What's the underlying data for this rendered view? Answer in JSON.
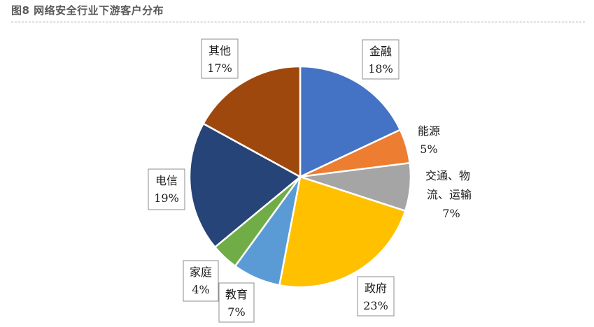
{
  "figure": {
    "title": "图8 网络安全行业下游客户分布"
  },
  "chart_data": {
    "type": "pie",
    "title": "",
    "slices": [
      {
        "label": "金融",
        "value_text": "18%",
        "value": 18,
        "color": "#4472C4"
      },
      {
        "label": "能源",
        "value_text": "5%",
        "value": 5,
        "color": "#ED7D31"
      },
      {
        "label": "交通、物流、运输",
        "value_text": "7%",
        "value": 7,
        "color": "#A5A5A5"
      },
      {
        "label": "政府",
        "value_text": "23%",
        "value": 23,
        "color": "#FFC000"
      },
      {
        "label": "教育",
        "value_text": "7%",
        "value": 7,
        "color": "#5B9BD5"
      },
      {
        "label": "家庭",
        "value_text": "4%",
        "value": 4,
        "color": "#70AD47"
      },
      {
        "label": "电信",
        "value_text": "19%",
        "value": 19,
        "color": "#264478"
      },
      {
        "label": "其他",
        "value_text": "17%",
        "value": 17,
        "color": "#9E480E"
      }
    ]
  }
}
